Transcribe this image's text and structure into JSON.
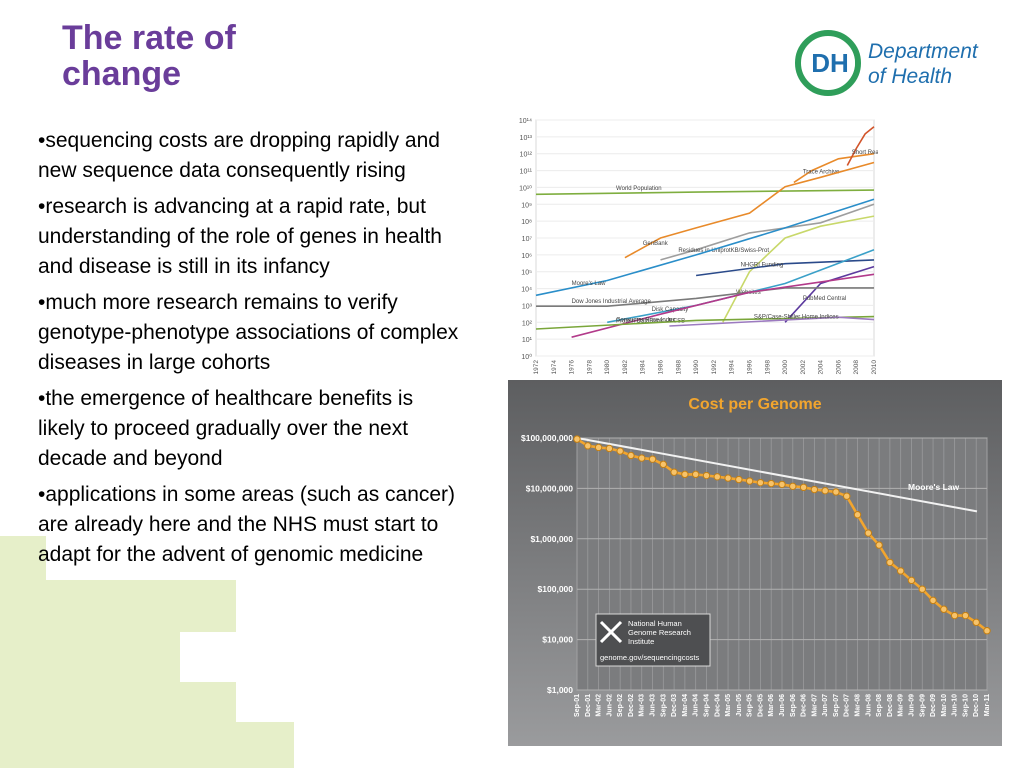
{
  "slide": {
    "title_lines": [
      "The rate of",
      "change"
    ],
    "logo": {
      "mark": "DH",
      "line1": "Department",
      "line2": "of Health",
      "color": "#1f6fae",
      "ring_color": "#2f9e5a"
    },
    "bullets": [
      "•sequencing costs are dropping rapidly and new sequence data consequently rising",
      "•research is advancing at a rapid rate, but understanding of the role of genes in health and disease is still in its infancy",
      "•much more research remains to verify genotype-phenotype associations of complex diseases in large cohorts",
      "•the emergence of healthcare benefits is likely to proceed gradually over the next decade and beyond",
      "•applications in some areas (such as cancer) are already here and the NHS must start to adapt for the advent of genomic medicine"
    ],
    "accent_color": "#6a3d9a",
    "decoration_color": "#e6efc9"
  },
  "chart_data": [
    {
      "type": "line",
      "y_scale": "log",
      "ylim": [
        1,
        100000000000000
      ],
      "y_ticks": [
        "10⁰",
        "10¹",
        "10²",
        "10³",
        "10⁴",
        "10⁵",
        "10⁶",
        "10⁷",
        "10⁸",
        "10⁹",
        "10¹⁰",
        "10¹¹",
        "10¹²",
        "10¹³",
        "10¹⁴"
      ],
      "x_ticks": [
        "1972",
        "1974",
        "1976",
        "1978",
        "1980",
        "1982",
        "1984",
        "1986",
        "1988",
        "1990",
        "1992",
        "1994",
        "1996",
        "1998",
        "2000",
        "2002",
        "2004",
        "2006",
        "2008",
        "2010"
      ],
      "grid": true,
      "series": [
        {
          "name": "World Population",
          "color": "#7fae3f",
          "x": [
            1972,
            1990,
            2010
          ],
          "y": [
            3900000000,
            5300000000,
            6900000000
          ]
        },
        {
          "name": "Trace Archive",
          "color": "#e88a2a",
          "x": [
            2001,
            2003,
            2006,
            2010
          ],
          "y": [
            20000000000,
            100000000000,
            500000000000,
            1000000000000
          ]
        },
        {
          "name": "Short Read Archive",
          "color": "#d2542a",
          "x": [
            2007,
            2008,
            2009,
            2010
          ],
          "y": [
            200000000000,
            2000000000000,
            15000000000000,
            40000000000000
          ]
        },
        {
          "name": "GenBank",
          "color": "#e88a2a",
          "x": [
            1982,
            1986,
            1990,
            1996,
            2000,
            2004,
            2010
          ],
          "y": [
            680000,
            10000000,
            40000000,
            300000000,
            11000000000,
            40000000000,
            300000000000
          ]
        },
        {
          "name": "Residues in UniprotKB/Swiss-Prot",
          "color": "#9e9e9e",
          "x": [
            1986,
            1990,
            1996,
            2000,
            2004,
            2010
          ],
          "y": [
            500000,
            2000000,
            20000000,
            40000000,
            80000000,
            1000000000
          ]
        },
        {
          "name": "Moore's Law",
          "color": "#2a8ec9",
          "x": [
            1972,
            1980,
            1990,
            2000,
            2010
          ],
          "y": [
            4000,
            30000,
            1000000,
            40000000,
            2000000000
          ]
        },
        {
          "name": "Websites",
          "color": "#c8d86a",
          "x": [
            1993,
            1996,
            2000,
            2004,
            2010
          ],
          "y": [
            100,
            100000,
            10000000,
            50000000,
            200000000
          ]
        },
        {
          "name": "NHGRI Funding",
          "color": "#2a4a8a",
          "x": [
            1990,
            2000,
            2010
          ],
          "y": [
            60000,
            300000,
            500000
          ]
        },
        {
          "name": "Disk Capacity",
          "color": "#3aa0c8",
          "x": [
            1980,
            1990,
            2000,
            2010
          ],
          "y": [
            100,
            1000,
            20000,
            2000000
          ]
        },
        {
          "name": "PubMed Central",
          "color": "#5c3a9e",
          "x": [
            2000,
            2004,
            2010
          ],
          "y": [
            100,
            20000,
            200000
          ]
        },
        {
          "name": "Dow Jones Industrial Average",
          "color": "#7a7a7a",
          "x": [
            1972,
            1980,
            1990,
            2000,
            2010
          ],
          "y": [
            900,
            900,
            2600,
            11000,
            11000
          ]
        },
        {
          "name": "Protein DataBank - RCSB",
          "color": "#b23a8a",
          "x": [
            1976,
            1986,
            1996,
            2010
          ],
          "y": [
            13,
            300,
            6000,
            70000
          ]
        },
        {
          "name": "Consumer Price Index",
          "color": "#7aa63a",
          "x": [
            1972,
            1990,
            2010
          ],
          "y": [
            40,
            130,
            218
          ]
        },
        {
          "name": "S&P/Case-Shiller Home Indices",
          "color": "#9c7ac0",
          "x": [
            1987,
            2006,
            2010
          ],
          "y": [
            60,
            200,
            145
          ]
        }
      ]
    },
    {
      "type": "line",
      "title": "Cost per Genome",
      "y_scale": "log",
      "ylim": [
        1000,
        100000000
      ],
      "y_ticks": [
        "$100,000,000",
        "$10,000,000",
        "$1,000,000",
        "$100,000",
        "$10,000",
        "$1,000"
      ],
      "categories": [
        "Sep-01",
        "Dec-01",
        "Mar-02",
        "Jun-02",
        "Sep-02",
        "Dec-02",
        "Mar-03",
        "Jun-03",
        "Sep-03",
        "Dec-03",
        "Mar-04",
        "Jun-04",
        "Sep-04",
        "Dec-04",
        "Mar-05",
        "Jun-05",
        "Sep-05",
        "Dec-05",
        "Mar-06",
        "Jun-06",
        "Sep-06",
        "Dec-06",
        "Mar-07",
        "Jun-07",
        "Sep-07",
        "Dec-07",
        "Mar-08",
        "Jun-08",
        "Sep-08",
        "Dec-08",
        "Mar-09",
        "Jun-09",
        "Sep-09",
        "Dec-09",
        "Mar-10",
        "Jun-10",
        "Sep-10",
        "Dec-10",
        "Mar-11"
      ],
      "grid": true,
      "series": [
        {
          "name": "Cost per Genome",
          "color": "#f2a52e",
          "values": [
            95000000,
            70000000,
            65000000,
            62000000,
            55000000,
            45000000,
            40000000,
            38000000,
            30000000,
            21000000,
            19000000,
            19000000,
            18000000,
            17000000,
            16000000,
            15000000,
            14000000,
            13000000,
            12500000,
            12000000,
            11000000,
            10500000,
            9500000,
            9000000,
            8500000,
            7000000,
            3000000,
            1300000,
            750000,
            340000,
            230000,
            150000,
            100000,
            60000,
            40000,
            30000,
            30000,
            22000,
            15000
          ]
        },
        {
          "name": "Moore's Law",
          "color": "#f2f2f2",
          "start_value": 100000000,
          "end_value": 3500000
        }
      ],
      "inset": {
        "org_lines": [
          "National Human",
          "Genome Research",
          "Institute"
        ],
        "url": "genome.gov/sequencingcosts"
      }
    }
  ]
}
